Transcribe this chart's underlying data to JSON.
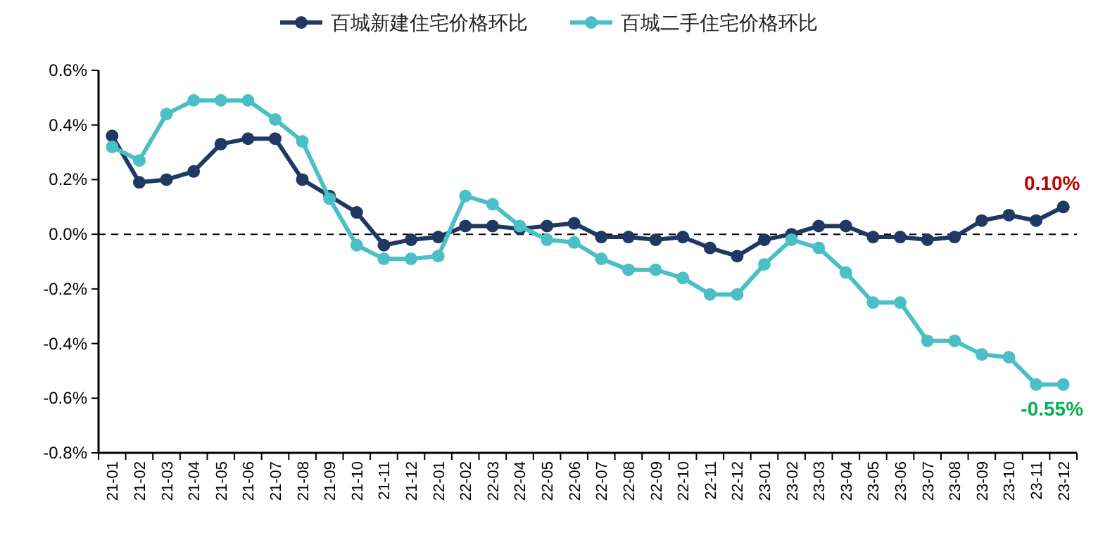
{
  "chart_data": {
    "type": "line",
    "categories": [
      "21-01",
      "21-02",
      "21-03",
      "21-04",
      "21-05",
      "21-06",
      "21-07",
      "21-08",
      "21-09",
      "21-10",
      "21-11",
      "21-12",
      "22-01",
      "22-02",
      "22-03",
      "22-04",
      "22-05",
      "22-06",
      "22-07",
      "22-08",
      "22-09",
      "22-10",
      "22-11",
      "22-12",
      "23-01",
      "23-02",
      "23-03",
      "23-04",
      "23-05",
      "23-06",
      "23-07",
      "23-08",
      "23-09",
      "23-10",
      "23-11",
      "23-12"
    ],
    "series": [
      {
        "name": "百城新建住宅价格环比",
        "color": "#1f3864",
        "values": [
          0.36,
          0.19,
          0.2,
          0.23,
          0.33,
          0.35,
          0.35,
          0.2,
          0.14,
          0.08,
          -0.04,
          -0.02,
          -0.01,
          0.03,
          0.03,
          0.02,
          0.03,
          0.04,
          -0.01,
          -0.01,
          -0.02,
          -0.01,
          -0.05,
          -0.08,
          -0.02,
          0.0,
          0.03,
          0.03,
          -0.01,
          -0.01,
          -0.02,
          -0.01,
          0.05,
          0.07,
          0.05,
          0.1
        ],
        "value_labels": [
          null,
          null,
          null,
          null,
          null,
          null,
          null,
          null,
          null,
          null,
          null,
          null,
          null,
          null,
          null,
          null,
          null,
          null,
          null,
          null,
          null,
          null,
          null,
          null,
          null,
          null,
          null,
          null,
          null,
          null,
          null,
          null,
          null,
          null,
          null,
          "0.10%"
        ]
      },
      {
        "name": "百城二手住宅价格环比",
        "color": "#4bbfc6",
        "values": [
          0.32,
          0.27,
          0.44,
          0.49,
          0.49,
          0.49,
          0.42,
          0.34,
          0.13,
          -0.04,
          -0.09,
          -0.09,
          -0.08,
          0.14,
          0.11,
          0.03,
          -0.02,
          -0.03,
          -0.09,
          -0.13,
          -0.13,
          -0.16,
          -0.22,
          -0.22,
          -0.11,
          -0.02,
          -0.05,
          -0.14,
          -0.25,
          -0.25,
          -0.39,
          -0.39,
          -0.44,
          -0.45,
          -0.55,
          -0.55
        ],
        "value_labels": [
          null,
          null,
          null,
          null,
          null,
          null,
          null,
          null,
          null,
          null,
          null,
          null,
          null,
          null,
          null,
          null,
          null,
          null,
          null,
          null,
          null,
          null,
          null,
          null,
          null,
          null,
          null,
          null,
          null,
          null,
          null,
          null,
          null,
          null,
          null,
          "-0.55%"
        ]
      }
    ],
    "ylim": [
      -0.8,
      0.6
    ],
    "yticks": [
      {
        "value": -0.8,
        "label": "-0.8%"
      },
      {
        "value": -0.6,
        "label": "-0.6%"
      },
      {
        "value": -0.4,
        "label": "-0.4%"
      },
      {
        "value": -0.2,
        "label": "-0.2%"
      },
      {
        "value": 0,
        "label": "0.0%"
      },
      {
        "value": 0.2,
        "label": "0.2%"
      },
      {
        "value": 0.4,
        "label": "0.4%"
      },
      {
        "value": 0.6,
        "label": "0.6%"
      }
    ],
    "ref_lines": [
      {
        "axis": "y",
        "value": 0,
        "color": "#000000",
        "line_style": "dashed"
      }
    ],
    "grid": false,
    "legend": "top",
    "marker": "circle",
    "line_style": "solid"
  }
}
